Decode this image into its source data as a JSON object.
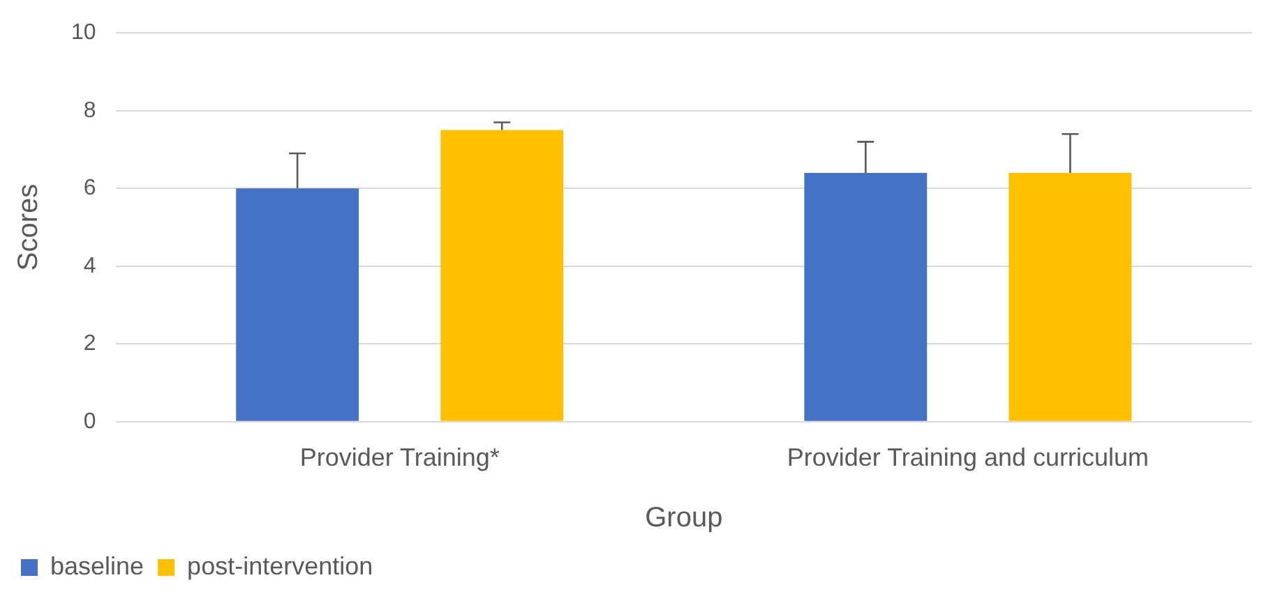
{
  "chart_data": {
    "type": "bar",
    "xlabel": "Group",
    "ylabel": "Scores",
    "categories": [
      "Provider Training*",
      "Provider Training and curriculum"
    ],
    "series": [
      {
        "name": "baseline",
        "color": "#4472c4",
        "values": [
          6.0,
          6.4
        ],
        "errors": [
          [
            6.0,
            6.9
          ],
          [
            6.4,
            7.2
          ]
        ]
      },
      {
        "name": "post-intervention",
        "color": "#ffc000",
        "values": [
          7.5,
          6.4
        ],
        "errors": [
          [
            7.5,
            7.7
          ],
          [
            6.4,
            7.4
          ]
        ]
      }
    ],
    "ylim": [
      0,
      10
    ],
    "yticks": [
      0,
      2,
      4,
      6,
      8,
      10
    ],
    "grid": "y",
    "legend": "bottom left"
  }
}
